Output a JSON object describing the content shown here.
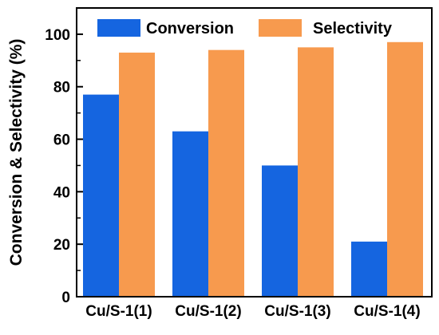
{
  "chart_data": {
    "type": "bar",
    "title": "",
    "xlabel": "",
    "ylabel": "Conversion & Selectivity (%)",
    "ylim": [
      0,
      110
    ],
    "yticks": [
      0,
      20,
      40,
      60,
      80,
      100
    ],
    "grid": false,
    "legend_position": "top",
    "categories": [
      "Cu/S-1(1)",
      "Cu/S-1(2)",
      "Cu/S-1(3)",
      "Cu/S-1(4)"
    ],
    "series": [
      {
        "name": "Conversion",
        "color": "#1565e0",
        "values": [
          77,
          63,
          50,
          21
        ]
      },
      {
        "name": "Selectivity",
        "color": "#f79a4e",
        "values": [
          93,
          94,
          95,
          97
        ]
      }
    ]
  }
}
